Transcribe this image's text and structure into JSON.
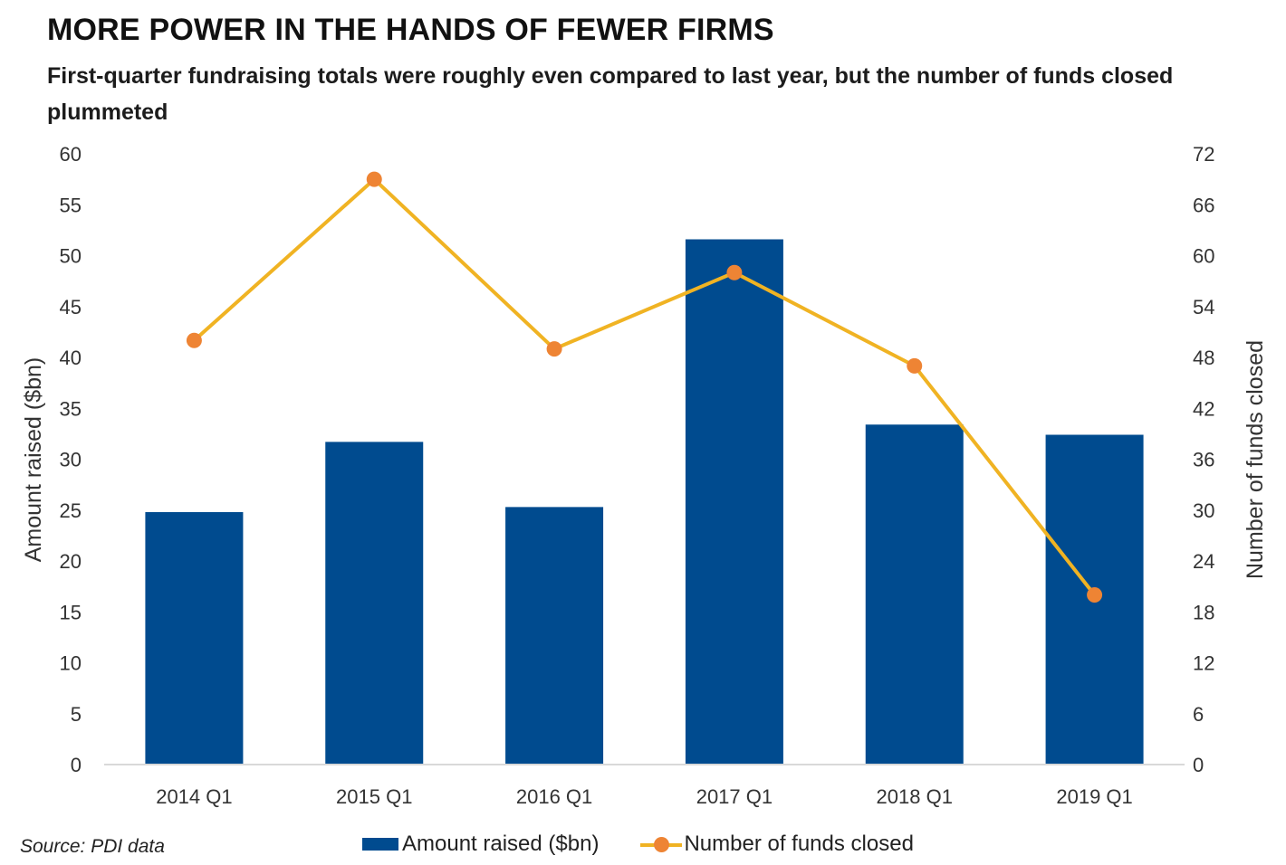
{
  "header": {
    "title": "MORE POWER IN THE HANDS OF FEWER FIRMS",
    "subtitle": "First-quarter fundraising totals were roughly even compared to last year, but the number of funds closed plummeted"
  },
  "footer": {
    "source": "Source: PDI data"
  },
  "colors": {
    "bar": "#004b8f",
    "line": "#f0b323",
    "marker": "#ee8434",
    "axis_text": "#333333",
    "baseline": "#d9d9d9"
  },
  "chart_data": {
    "type": "bar",
    "categories": [
      "2014 Q1",
      "2015 Q1",
      "2016 Q1",
      "2017 Q1",
      "2018 Q1",
      "2019 Q1"
    ],
    "series": [
      {
        "name": "Amount raised ($bn)",
        "type": "bar",
        "axis": "left",
        "values": [
          24.8,
          31.7,
          25.3,
          51.6,
          33.4,
          32.4
        ]
      },
      {
        "name": "Number of funds closed",
        "type": "line",
        "axis": "right",
        "values": [
          50,
          69,
          49,
          58,
          47,
          20
        ]
      }
    ],
    "ylabel": "Amount raised ($bn)",
    "y2label": "Number of funds closed",
    "ylim": [
      0,
      60
    ],
    "y2lim": [
      0,
      72
    ],
    "yticks": [
      "0",
      "5",
      "10",
      "15",
      "20",
      "25",
      "30",
      "35",
      "40",
      "45",
      "50",
      "55",
      "60"
    ],
    "y2ticks": [
      "0",
      "6",
      "12",
      "18",
      "24",
      "30",
      "36",
      "42",
      "48",
      "54",
      "60",
      "66",
      "72"
    ],
    "grid": false,
    "legend": "bottom"
  }
}
